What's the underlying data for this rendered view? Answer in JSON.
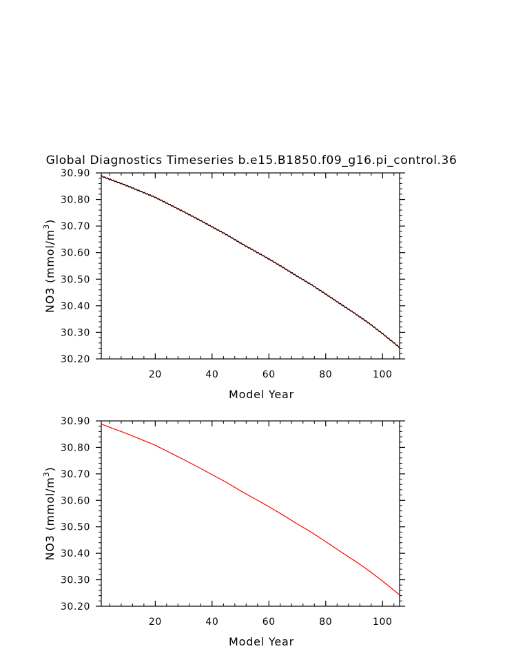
{
  "title": "Global Diagnostics Timeseries b.e15.B1850.f09_g16.pi_control.36",
  "colors": {
    "line_red": "#ff0000",
    "line_black": "#000000",
    "axis": "#000000",
    "background": "#ffffff"
  },
  "chart_data": [
    {
      "type": "line",
      "panel": "top",
      "title": "Global Diagnostics Timeseries b.e15.B1850.f09_g16.pi_control.36",
      "xlabel": "Model Year",
      "ylabel": "NO3 (mmol/m³)",
      "ylabel_main": "NO3 (mmol/m",
      "ylabel_sup": "3",
      "ylabel_close": ")",
      "xlim": [
        1,
        106
      ],
      "ylim": [
        30.2,
        30.9
      ],
      "xticks": [
        20,
        40,
        60,
        80,
        100
      ],
      "xtick_labels": [
        "20",
        "40",
        "60",
        "80",
        "100"
      ],
      "yticks": [
        30.2,
        30.3,
        30.4,
        30.5,
        30.6,
        30.7,
        30.8,
        30.9
      ],
      "ytick_labels": [
        "30.20",
        "30.30",
        "30.40",
        "30.50",
        "30.60",
        "30.70",
        "30.80",
        "30.90"
      ],
      "grid": false,
      "note": "monthly series (black, with seasonal wiggle) overlaid on annual mean (red)",
      "series": [
        {
          "color": "#ff0000",
          "x": [
            1,
            5,
            10,
            15,
            20,
            25,
            30,
            35,
            40,
            45,
            50,
            55,
            60,
            65,
            70,
            75,
            80,
            85,
            90,
            95,
            100,
            106
          ],
          "y": [
            30.888,
            30.872,
            30.852,
            30.83,
            30.808,
            30.781,
            30.754,
            30.726,
            30.697,
            30.668,
            30.636,
            30.606,
            30.576,
            30.544,
            30.511,
            30.479,
            30.444,
            30.408,
            30.373,
            30.336,
            30.295,
            30.243
          ]
        },
        {
          "color": "#000000",
          "x": [
            1,
            5,
            10,
            15,
            20,
            25,
            30,
            35,
            40,
            45,
            50,
            55,
            60,
            65,
            70,
            75,
            80,
            85,
            90,
            95,
            100,
            106
          ],
          "y": [
            30.888,
            30.872,
            30.852,
            30.83,
            30.808,
            30.781,
            30.754,
            30.726,
            30.697,
            30.668,
            30.636,
            30.606,
            30.576,
            30.544,
            30.511,
            30.479,
            30.444,
            30.408,
            30.373,
            30.336,
            30.295,
            30.243
          ]
        }
      ]
    },
    {
      "type": "line",
      "panel": "bottom",
      "xlabel": "Model Year",
      "ylabel": "NO3 (mmol/m³)",
      "ylabel_main": "NO3 (mmol/m",
      "ylabel_sup": "3",
      "ylabel_close": ")",
      "xlim": [
        1,
        106
      ],
      "ylim": [
        30.2,
        30.9
      ],
      "xticks": [
        20,
        40,
        60,
        80,
        100
      ],
      "xtick_labels": [
        "20",
        "40",
        "60",
        "80",
        "100"
      ],
      "yticks": [
        30.2,
        30.3,
        30.4,
        30.5,
        30.6,
        30.7,
        30.8,
        30.9
      ],
      "ytick_labels": [
        "30.20",
        "30.30",
        "30.40",
        "30.50",
        "30.60",
        "30.70",
        "30.80",
        "30.90"
      ],
      "grid": false,
      "series": [
        {
          "color": "#ff0000",
          "x": [
            1,
            5,
            10,
            15,
            20,
            25,
            30,
            35,
            40,
            45,
            50,
            55,
            60,
            65,
            70,
            75,
            80,
            85,
            90,
            95,
            100,
            106
          ],
          "y": [
            30.888,
            30.872,
            30.852,
            30.83,
            30.808,
            30.781,
            30.754,
            30.726,
            30.697,
            30.668,
            30.636,
            30.606,
            30.576,
            30.544,
            30.511,
            30.479,
            30.444,
            30.408,
            30.373,
            30.336,
            30.295,
            30.243
          ]
        }
      ]
    }
  ]
}
